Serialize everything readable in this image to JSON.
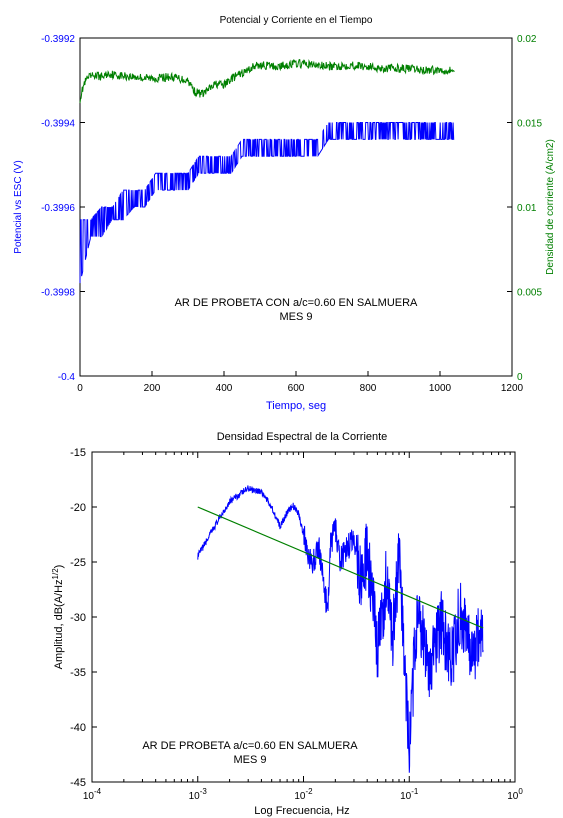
{
  "chart_data": [
    {
      "type": "line",
      "title": "Potencial y Corriente en el Tiempo",
      "xlabel": "Tiempo, seg",
      "ylabel": "Potencial vs ESC (V)",
      "ylabel_right": "Densidad de corriente (A/cm2)",
      "xlim": [
        0,
        1200
      ],
      "ylim": [
        -0.4,
        -0.3992
      ],
      "ylim_right": [
        0,
        0.02
      ],
      "x_ticks": [
        0,
        200,
        400,
        600,
        800,
        1000,
        1200
      ],
      "y_ticks": [
        -0.3992,
        -0.3994,
        -0.3996,
        -0.3998,
        -0.4
      ],
      "y_ticks_right": [
        0,
        0.005,
        0.01,
        0.015,
        0.02
      ],
      "annotation": [
        "AR DE PROBETA CON a/c=0.60 EN SALMUERA",
        "MES 9"
      ],
      "grid": false,
      "colors": {
        "left_axis": "#0000ff",
        "right_axis": "#007f00",
        "potential": "#0000ff",
        "current": "#008000"
      },
      "series": [
        {
          "axis": "left",
          "x": [
            0,
            30,
            60,
            90,
            120,
            150,
            180,
            210,
            240,
            270,
            300,
            330,
            360,
            390,
            420,
            450,
            480,
            510,
            540,
            570,
            600,
            630,
            660,
            690,
            720,
            750,
            780,
            810,
            840,
            870,
            900,
            930,
            960,
            990,
            1020,
            1040
          ],
          "levels_low": [
            -0.39978,
            -0.39967,
            -0.39967,
            -0.39963,
            -0.39963,
            -0.3996,
            -0.3996,
            -0.39956,
            -0.39956,
            -0.39956,
            -0.39956,
            -0.39952,
            -0.39952,
            -0.39952,
            -0.39952,
            -0.39948,
            -0.39948,
            -0.39948,
            -0.39948,
            -0.39948,
            -0.39948,
            -0.39948,
            -0.39948,
            -0.39944,
            -0.39944,
            -0.39944,
            -0.39944,
            -0.39944,
            -0.39944,
            -0.39944,
            -0.39944,
            -0.39944,
            -0.39944,
            -0.39944,
            -0.39944,
            -0.39944
          ],
          "levels_high": [
            -0.39963,
            -0.39963,
            -0.3996,
            -0.3996,
            -0.39956,
            -0.39956,
            -0.39956,
            -0.39952,
            -0.39952,
            -0.39952,
            -0.39952,
            -0.39948,
            -0.39948,
            -0.39948,
            -0.39948,
            -0.39944,
            -0.39944,
            -0.39944,
            -0.39944,
            -0.39944,
            -0.39944,
            -0.39944,
            -0.39944,
            -0.3994,
            -0.3994,
            -0.3994,
            -0.3994,
            -0.3994,
            -0.3994,
            -0.3994,
            -0.3994,
            -0.3994,
            -0.3994,
            -0.3994,
            -0.3994,
            -0.3994
          ]
        },
        {
          "axis": "right",
          "x": [
            0,
            10,
            20,
            40,
            60,
            80,
            100,
            150,
            200,
            250,
            300,
            320,
            340,
            360,
            380,
            400,
            420,
            440,
            460,
            480,
            500,
            550,
            600,
            650,
            700,
            750,
            800,
            850,
            900,
            950,
            1000,
            1040
          ],
          "values": [
            0.0164,
            0.0172,
            0.0176,
            0.0178,
            0.0177,
            0.0179,
            0.0178,
            0.0177,
            0.0176,
            0.0177,
            0.0175,
            0.0168,
            0.0167,
            0.017,
            0.0173,
            0.0172,
            0.0176,
            0.0178,
            0.018,
            0.0183,
            0.0184,
            0.0183,
            0.0185,
            0.0184,
            0.0183,
            0.0184,
            0.0183,
            0.0182,
            0.0182,
            0.0181,
            0.0181,
            0.0181
          ]
        }
      ]
    },
    {
      "type": "line",
      "title": "Densidad Espectral de la Corriente",
      "xlabel": "Log Frecuencia, Hz",
      "ylabel": "Amplitud, dB(A/Hz1/2)",
      "x_scale": "log",
      "xlim": [
        0.0001,
        1
      ],
      "ylim": [
        -45,
        -15
      ],
      "x_ticks": [
        "10-4",
        "10-3",
        "10-2",
        "10-1",
        "100"
      ],
      "y_ticks": [
        -15,
        -20,
        -25,
        -30,
        -35,
        -40,
        -45
      ],
      "annotation": [
        "AR DE PROBETA a/c=0.60 EN SALMUERA",
        "MES 9"
      ],
      "grid": false,
      "colors": {
        "spectrum": "#0000ff",
        "fit": "#008000"
      },
      "series": [
        {
          "x": [
            0.001,
            0.0015,
            0.002,
            0.003,
            0.004,
            0.005,
            0.006,
            0.007,
            0.008,
            0.009,
            0.01,
            0.012,
            0.014,
            0.016,
            0.017,
            0.018,
            0.02,
            0.022,
            0.025,
            0.03,
            0.035,
            0.04,
            0.045,
            0.05,
            0.06,
            0.07,
            0.08,
            0.09,
            0.1,
            0.12,
            0.15,
            0.2,
            0.25,
            0.3,
            0.4,
            0.5
          ],
          "values": [
            -24.5,
            -21.5,
            -19.5,
            -18.3,
            -18.6,
            -20.0,
            -21.8,
            -20.5,
            -19.9,
            -20.6,
            -22.5,
            -25.5,
            -23.5,
            -28.0,
            -29.5,
            -23.5,
            -21.8,
            -25.0,
            -24.0,
            -22.8,
            -26.5,
            -24.3,
            -28.5,
            -33.5,
            -27.0,
            -31.5,
            -25.0,
            -33.5,
            -42.2,
            -28.5,
            -35.0,
            -30.5,
            -34.5,
            -29.5,
            -33.0,
            -31.5
          ]
        },
        {
          "x": [
            0.001,
            0.5
          ],
          "values": [
            -20.0,
            -31.0
          ]
        }
      ]
    }
  ]
}
